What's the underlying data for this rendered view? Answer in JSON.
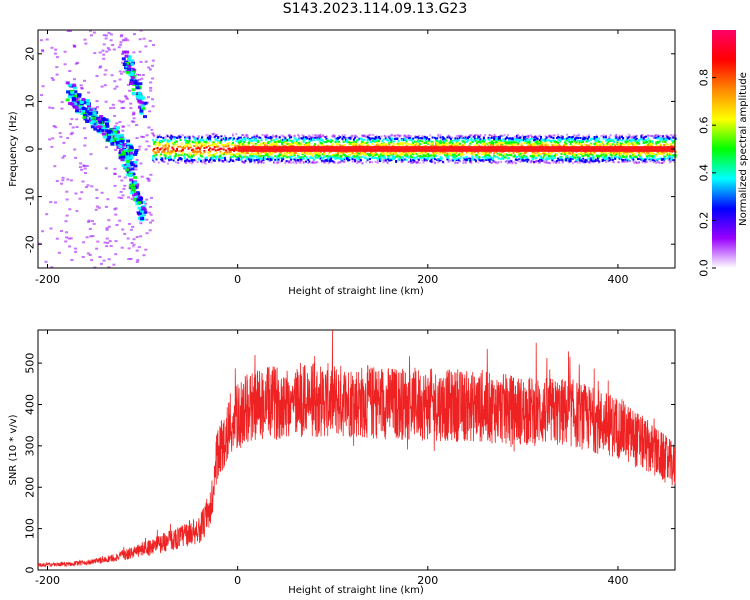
{
  "title": "S143.2023.114.09.13.G23",
  "chart_data": [
    {
      "type": "heatmap",
      "xlabel": "Height of straight line (km)",
      "ylabel": "Frequency (Hz)",
      "xlim": [
        -210,
        460
      ],
      "ylim": [
        -25,
        25
      ],
      "xticks": [
        -200,
        0,
        200,
        400
      ],
      "yticks": [
        -20,
        -10,
        0,
        10,
        20
      ],
      "colorbar": {
        "label": "Normalized spectral amplitude",
        "range": [
          0,
          1
        ],
        "ticks": [
          0.0,
          0.2,
          0.4,
          0.6,
          0.8
        ],
        "tick_labels": [
          "0.0",
          "0.2",
          "0.4",
          "0.6",
          "0.8"
        ],
        "colors": [
          "#ffffff",
          "#9900ff",
          "#0000ff",
          "#00ffff",
          "#00ff00",
          "#ffff00",
          "#ff8800",
          "#ff0000",
          "#ff0066"
        ]
      },
      "features": {
        "carrier_frequency_hz": 0,
        "steady_from_km": -90,
        "noisy_region_km": [
          -210,
          -90
        ],
        "descending_branch": {
          "from": [
            -180,
            12
          ],
          "to": [
            -110,
            -2
          ]
        },
        "lower_branch": {
          "from": [
            -130,
            4
          ],
          "to": [
            -100,
            -15
          ]
        },
        "upper_branch": {
          "from": [
            -120,
            20
          ],
          "to": [
            -100,
            8
          ]
        }
      }
    },
    {
      "type": "line",
      "xlabel": "Height of straight line (km)",
      "ylabel": "SNR (10 * v/v)",
      "xlim": [
        -210,
        460
      ],
      "ylim": [
        0,
        580
      ],
      "xticks": [
        -200,
        0,
        200,
        400
      ],
      "yticks": [
        0,
        100,
        200,
        300,
        400,
        500
      ],
      "series": [
        {
          "color": "#ee2222",
          "x": [
            -210,
            -180,
            -150,
            -120,
            -100,
            -80,
            -60,
            -50,
            -40,
            -30,
            -25,
            -20,
            -10,
            0,
            10,
            20,
            40,
            60,
            80,
            100,
            150,
            200,
            250,
            300,
            350,
            400,
            430,
            460
          ],
          "y": [
            12,
            14,
            20,
            35,
            50,
            65,
            80,
            90,
            100,
            130,
            200,
            280,
            340,
            370,
            390,
            400,
            405,
            408,
            410,
            410,
            405,
            400,
            395,
            385,
            380,
            345,
            300,
            250
          ]
        }
      ]
    }
  ]
}
